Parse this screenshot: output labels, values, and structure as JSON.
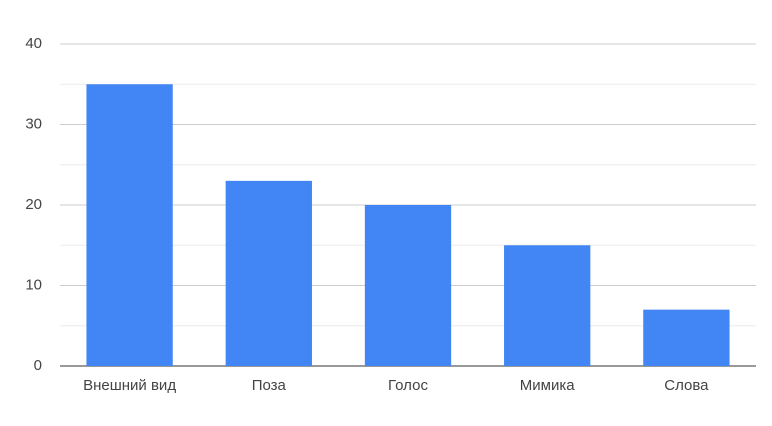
{
  "chart_data": {
    "type": "bar",
    "categories": [
      "Внешний вид",
      "Поза",
      "Голос",
      "Мимика",
      "Слова"
    ],
    "values": [
      35,
      23,
      20,
      15,
      7
    ],
    "color": "#4285f4",
    "ylim": [
      0,
      40
    ],
    "yticks": [
      0,
      10,
      20,
      30,
      40
    ],
    "minor_yticks": [
      5,
      15,
      25,
      35
    ],
    "grid": true
  }
}
